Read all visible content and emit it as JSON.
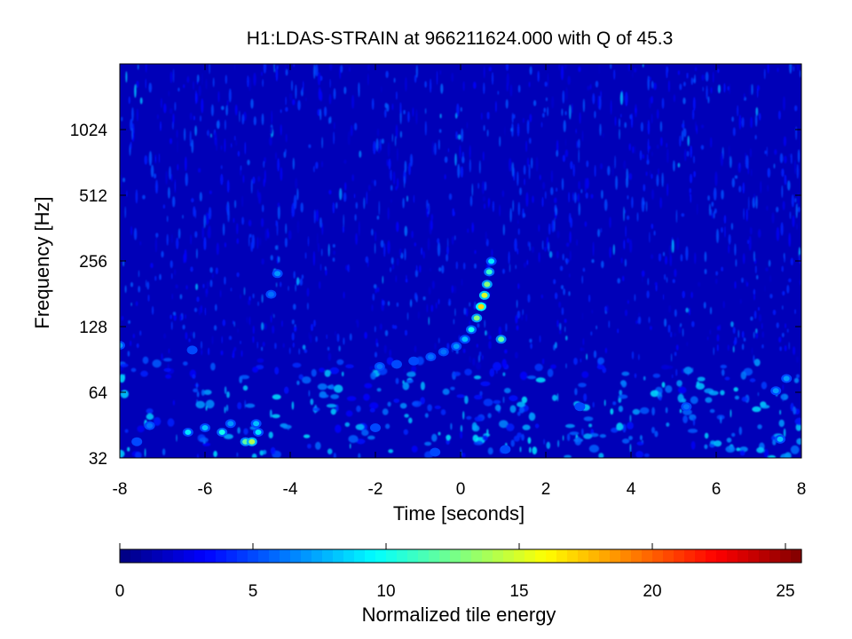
{
  "chart_data": {
    "type": "heatmap",
    "title": "H1:LDAS-STRAIN at 966211624.000 with Q of 45.3",
    "xlabel": "Time [seconds]",
    "ylabel": "Frequency [Hz]",
    "xlim": [
      -8,
      8
    ],
    "ylim": [
      32,
      2048
    ],
    "yscale": "log2",
    "x_ticks": [
      -8,
      -6,
      -4,
      -2,
      0,
      2,
      4,
      6,
      8
    ],
    "x_tick_labels": [
      "-8",
      "-6",
      "-4",
      "-2",
      "0",
      "2",
      "4",
      "6",
      "8"
    ],
    "y_ticks": [
      32,
      64,
      128,
      256,
      512,
      1024
    ],
    "y_tick_labels": [
      "32",
      "64",
      "128",
      "256",
      "512",
      "1024"
    ],
    "background_value": 1.5,
    "colormap": "jet",
    "colorbar": {
      "label": "Normalized tile energy",
      "range": [
        0,
        25.6
      ],
      "ticks": [
        0,
        5,
        10,
        15,
        20,
        25
      ],
      "tick_labels": [
        "0",
        "5",
        "10",
        "15",
        "20",
        "25"
      ],
      "orientation": "horizontal"
    },
    "features": [
      {
        "t": -8.0,
        "f": 105,
        "energy": 7
      },
      {
        "t": -7.6,
        "f": 38,
        "energy": 5
      },
      {
        "t": -7.3,
        "f": 45,
        "energy": 6
      },
      {
        "t": -6.4,
        "f": 42,
        "energy": 9
      },
      {
        "t": -6.0,
        "f": 44,
        "energy": 8
      },
      {
        "t": -5.6,
        "f": 42,
        "energy": 10
      },
      {
        "t": -5.4,
        "f": 46,
        "energy": 7
      },
      {
        "t": -5.05,
        "f": 38,
        "energy": 12
      },
      {
        "t": -4.9,
        "f": 38,
        "energy": 14
      },
      {
        "t": -4.75,
        "f": 42,
        "energy": 9
      },
      {
        "t": -4.8,
        "f": 46,
        "energy": 8
      },
      {
        "t": -4.3,
        "f": 224,
        "energy": 7
      },
      {
        "t": -4.45,
        "f": 180,
        "energy": 6
      },
      {
        "t": -6.3,
        "f": 100,
        "energy": 5
      },
      {
        "t": -1.9,
        "f": 84,
        "energy": 6
      },
      {
        "t": -1.5,
        "f": 86,
        "energy": 5
      },
      {
        "t": -1.1,
        "f": 89,
        "energy": 5
      },
      {
        "t": -0.7,
        "f": 93,
        "energy": 6
      },
      {
        "t": -0.4,
        "f": 98,
        "energy": 6
      },
      {
        "t": -0.1,
        "f": 104,
        "energy": 7
      },
      {
        "t": 0.1,
        "f": 112,
        "energy": 8
      },
      {
        "t": 0.25,
        "f": 124,
        "energy": 10
      },
      {
        "t": 0.38,
        "f": 140,
        "energy": 13
      },
      {
        "t": 0.48,
        "f": 158,
        "energy": 17
      },
      {
        "t": 0.56,
        "f": 178,
        "energy": 15
      },
      {
        "t": 0.62,
        "f": 200,
        "energy": 13
      },
      {
        "t": 0.67,
        "f": 228,
        "energy": 11
      },
      {
        "t": 0.72,
        "f": 255,
        "energy": 9
      },
      {
        "t": 0.95,
        "f": 112,
        "energy": 12
      },
      {
        "t": 1.05,
        "f": 35,
        "energy": 5
      },
      {
        "t": 2.8,
        "f": 55,
        "energy": 5
      },
      {
        "t": 5.3,
        "f": 55,
        "energy": 6
      },
      {
        "t": 7.4,
        "f": 65,
        "energy": 7
      },
      {
        "t": 7.65,
        "f": 74,
        "energy": 7
      },
      {
        "t": 7.5,
        "f": 39,
        "energy": 8
      },
      {
        "t": -2.0,
        "f": 44,
        "energy": 5
      },
      {
        "t": -0.6,
        "f": 34,
        "energy": 5
      }
    ]
  }
}
